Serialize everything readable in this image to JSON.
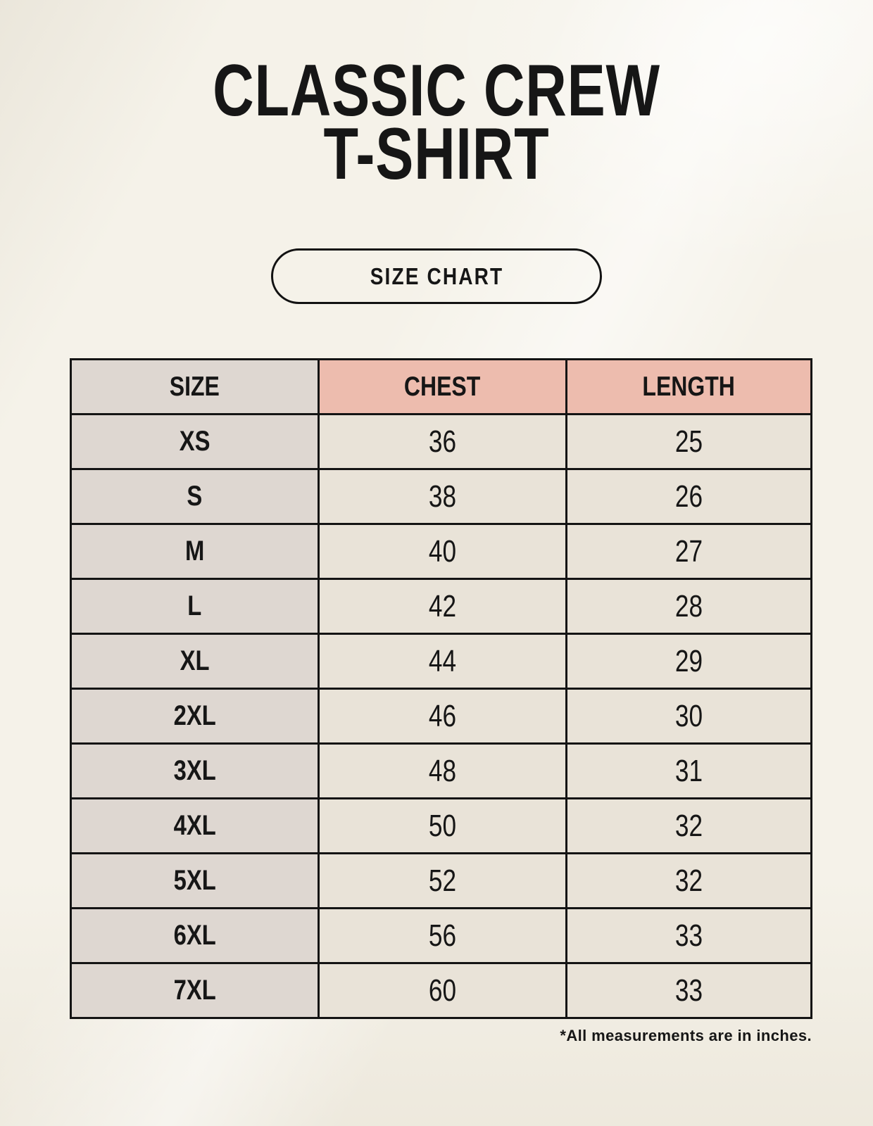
{
  "title": {
    "line1": "CLASSIC CREW",
    "line2": "T-SHIRT"
  },
  "size_chart_button": {
    "label": "SIZE CHART"
  },
  "footnote": "*All measurements are in inches.",
  "colors": {
    "background": "#f5f2e9",
    "table_border": "#141414",
    "size_column_bg": "#ded7d1",
    "header_accent_bg": "#edbcae",
    "data_cell_bg": "#e9e3d8",
    "text": "#161616"
  },
  "chart_data": {
    "type": "table",
    "title": "CLASSIC CREW T-SHIRT",
    "units": "inches",
    "columns": [
      "SIZE",
      "CHEST",
      "LENGTH"
    ],
    "rows": [
      {
        "size": "XS",
        "chest": 36,
        "length": 25
      },
      {
        "size": "S",
        "chest": 38,
        "length": 26
      },
      {
        "size": "M",
        "chest": 40,
        "length": 27
      },
      {
        "size": "L",
        "chest": 42,
        "length": 28
      },
      {
        "size": "XL",
        "chest": 44,
        "length": 29
      },
      {
        "size": "2XL",
        "chest": 46,
        "length": 30
      },
      {
        "size": "3XL",
        "chest": 48,
        "length": 31
      },
      {
        "size": "4XL",
        "chest": 50,
        "length": 32
      },
      {
        "size": "5XL",
        "chest": 52,
        "length": 32
      },
      {
        "size": "6XL",
        "chest": 56,
        "length": 33
      },
      {
        "size": "7XL",
        "chest": 60,
        "length": 33
      }
    ]
  }
}
